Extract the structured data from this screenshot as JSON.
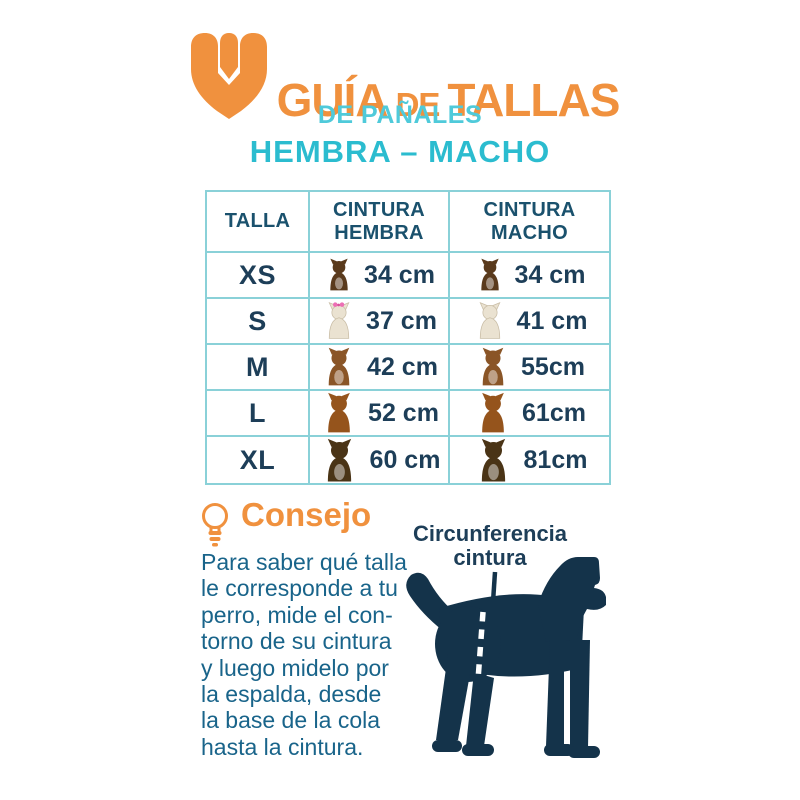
{
  "header": {
    "title_word1": "GUÍA",
    "title_word2": "DE",
    "title_word3": "TALLAS",
    "subtitle": "DE PAÑALES",
    "gender_line": "HEMBRA – MACHO"
  },
  "table": {
    "columns": [
      "TALLA",
      "CINTURA HEMBRA",
      "CINTURA MACHO"
    ],
    "rows": [
      {
        "size": "XS",
        "breed": "chihuahua",
        "hembra": "34 cm",
        "macho": "34 cm"
      },
      {
        "size": "S",
        "breed": "maltese",
        "hembra": "37 cm",
        "macho": "41 cm",
        "bow_hembra": true
      },
      {
        "size": "M",
        "breed": "beagle",
        "hembra": "42 cm",
        "macho": "55cm"
      },
      {
        "size": "L",
        "breed": "cocker-spaniel",
        "hembra": "52 cm",
        "macho": "61cm"
      },
      {
        "size": "XL",
        "breed": "german-shepherd",
        "hembra": "60 cm",
        "macho": "81cm"
      }
    ]
  },
  "consejo": {
    "heading": "Consejo",
    "lines": [
      "Para saber qué talla",
      "le corresponde a tu",
      "perro, mide el con-",
      "torno de su cintura",
      "y luego midelo por",
      "la espalda, desde",
      "la base de la cola",
      "hasta la cintura."
    ]
  },
  "diagram": {
    "label_line1": "Circunferencia",
    "label_line2": "cintura"
  },
  "colors": {
    "orange": "#F0913E",
    "cyan": "#4FCADA",
    "teal": "#2BBCCF",
    "navy_text": "#1D3E58",
    "header_text": "#1A516D",
    "advice_text": "#19648A",
    "table_border": "#8AD1D8",
    "silhouette": "#14334A"
  }
}
